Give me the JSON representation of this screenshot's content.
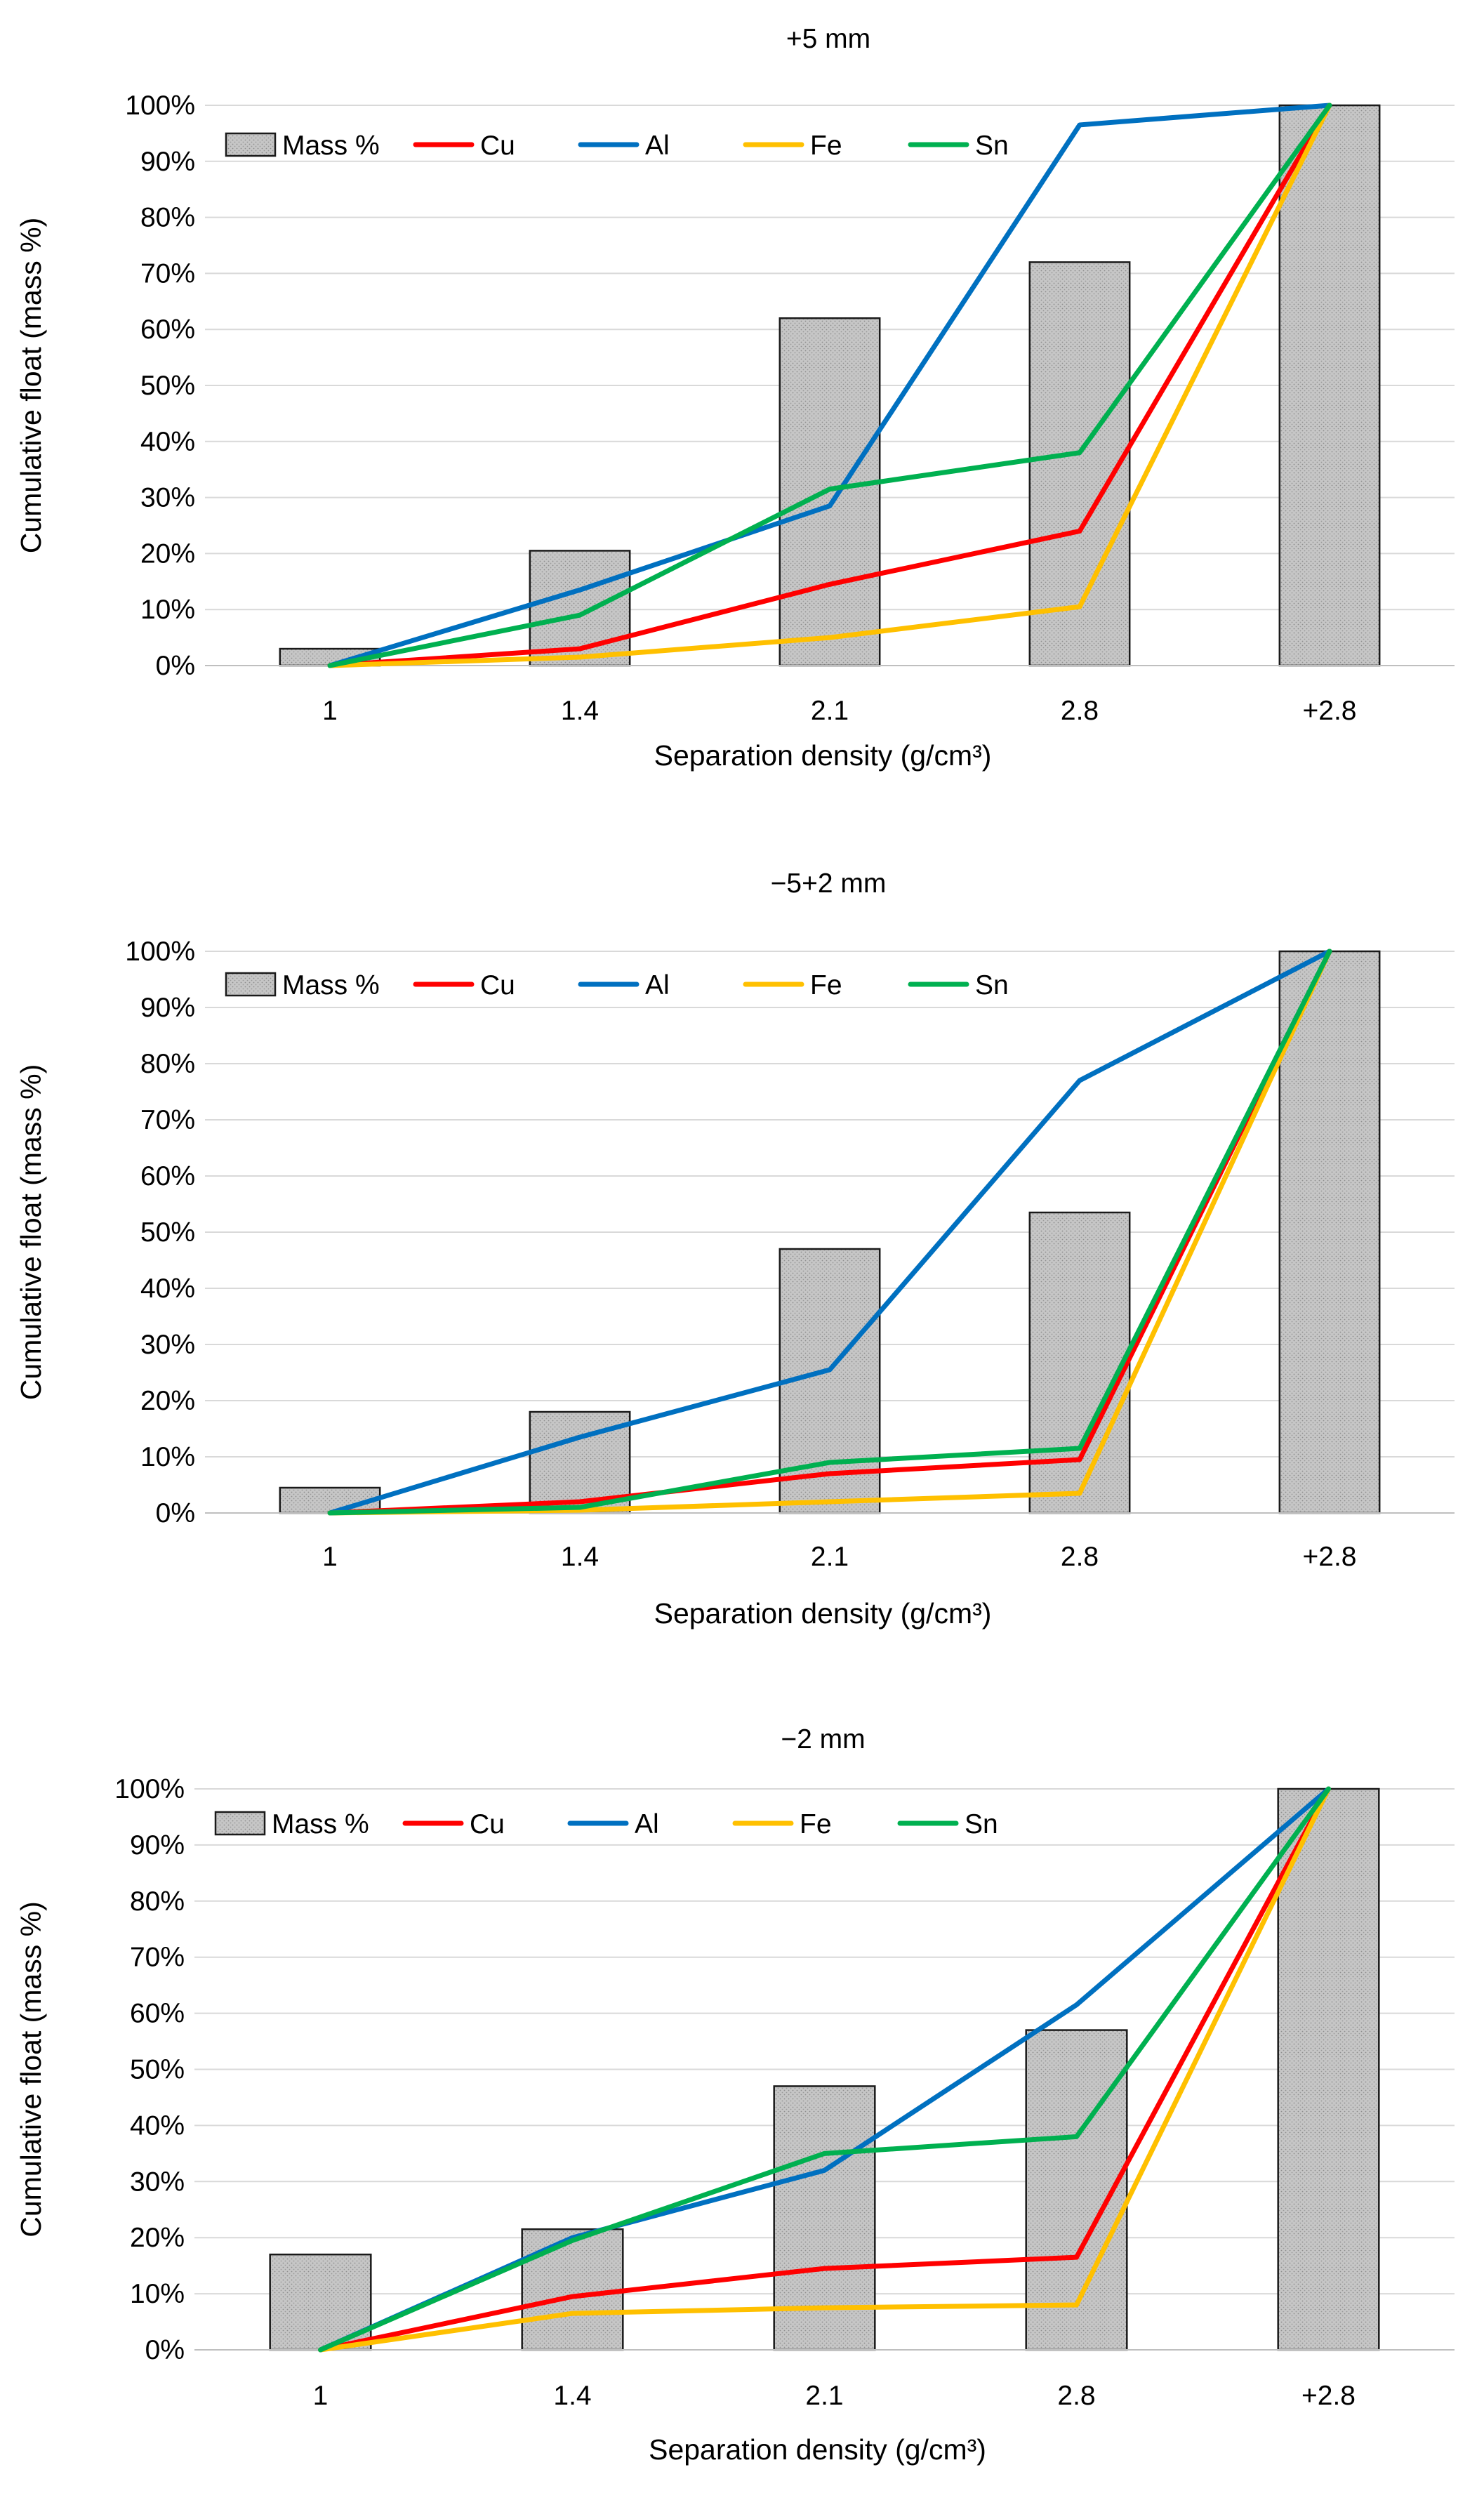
{
  "chart_data": [
    {
      "type": "bar",
      "title": "+5 mm",
      "xlabel": "Separation density (g/cm³)",
      "ylabel": "Cumulative float (mass %)",
      "categories": [
        "1",
        "1.4",
        "2.1",
        "2.8",
        "+2.8"
      ],
      "ylim": [
        0,
        100
      ],
      "yticks": [
        "0%",
        "10%",
        "20%",
        "30%",
        "40%",
        "50%",
        "60%",
        "70%",
        "80%",
        "90%",
        "100%"
      ],
      "grid": true,
      "legend_position": "top-left",
      "bars": {
        "name": "Mass %",
        "color": "#c8c8c8",
        "values": [
          3,
          20.5,
          62,
          72,
          100
        ]
      },
      "series": [
        {
          "name": "Cu",
          "color": "#ff0000",
          "values": [
            0,
            3,
            14.5,
            24,
            100
          ]
        },
        {
          "name": "Al",
          "color": "#0070c0",
          "values": [
            0,
            13.5,
            28.5,
            96.5,
            100
          ]
        },
        {
          "name": "Fe",
          "color": "#ffc000",
          "values": [
            0,
            1.5,
            5,
            10.5,
            100
          ]
        },
        {
          "name": "Sn",
          "color": "#00b050",
          "values": [
            0,
            9,
            31.5,
            38,
            100
          ]
        }
      ]
    },
    {
      "type": "bar",
      "title": "−5+2 mm",
      "xlabel": "Separation density (g/cm³)",
      "ylabel": "Cumulative float (mass %)",
      "categories": [
        "1",
        "1.4",
        "2.1",
        "2.8",
        "+2.8"
      ],
      "ylim": [
        0,
        100
      ],
      "yticks": [
        "0%",
        "10%",
        "20%",
        "30%",
        "40%",
        "50%",
        "60%",
        "70%",
        "80%",
        "90%",
        "100%"
      ],
      "grid": true,
      "legend_position": "top-left",
      "bars": {
        "name": "Mass %",
        "color": "#c8c8c8",
        "values": [
          4.5,
          18,
          47,
          53.5,
          100
        ]
      },
      "series": [
        {
          "name": "Cu",
          "color": "#ff0000",
          "values": [
            0,
            2,
            7,
            9.5,
            100
          ]
        },
        {
          "name": "Al",
          "color": "#0070c0",
          "values": [
            0,
            13.5,
            25.5,
            77,
            100
          ]
        },
        {
          "name": "Fe",
          "color": "#ffc000",
          "values": [
            0,
            0.5,
            2,
            3.5,
            100
          ]
        },
        {
          "name": "Sn",
          "color": "#00b050",
          "values": [
            0,
            1,
            9,
            11.5,
            100
          ]
        }
      ]
    },
    {
      "type": "bar",
      "title": "−2 mm",
      "xlabel": "Separation density (g/cm³)",
      "ylabel": "Cumulative float (mass %)",
      "categories": [
        "1",
        "1.4",
        "2.1",
        "2.8",
        "+2.8"
      ],
      "ylim": [
        0,
        100
      ],
      "yticks": [
        "0%",
        "10%",
        "20%",
        "30%",
        "40%",
        "50%",
        "60%",
        "70%",
        "80%",
        "90%",
        "100%"
      ],
      "grid": true,
      "legend_position": "top-left",
      "bars": {
        "name": "Mass %",
        "color": "#c8c8c8",
        "values": [
          17,
          21.5,
          47,
          57,
          100
        ]
      },
      "series": [
        {
          "name": "Cu",
          "color": "#ff0000",
          "values": [
            0,
            9.5,
            14.5,
            16.5,
            100
          ]
        },
        {
          "name": "Al",
          "color": "#0070c0",
          "values": [
            0,
            20,
            32,
            61.5,
            100
          ]
        },
        {
          "name": "Fe",
          "color": "#ffc000",
          "values": [
            0,
            6.5,
            7.5,
            8,
            100
          ]
        },
        {
          "name": "Sn",
          "color": "#00b050",
          "values": [
            0,
            19.5,
            35,
            38,
            100
          ]
        }
      ]
    }
  ]
}
